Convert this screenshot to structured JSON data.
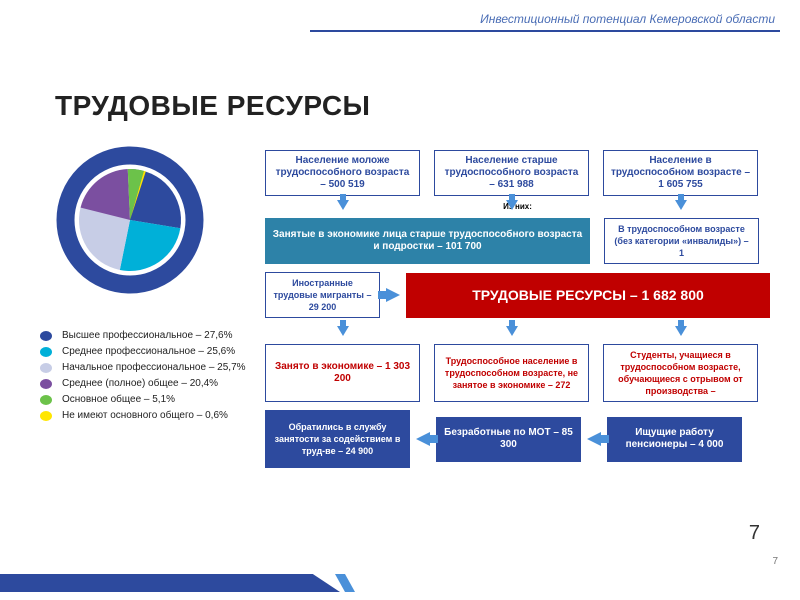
{
  "header": "Инвестиционный потенциал Кемеровской области",
  "title": "ТРУДОВЫЕ РЕСУРСЫ",
  "pie": {
    "ring_color": "#2d4a9e",
    "ring_width": 12,
    "bg": "#ffffff",
    "slices": [
      {
        "label": "Высшее профессиональное",
        "pct": 27.6,
        "color": "#2d4a9e"
      },
      {
        "label": "Среднее профессиональное",
        "pct": 25.6,
        "color": "#00b0d8"
      },
      {
        "label": "Начальное профессиональное",
        "pct": 25.7,
        "color": "#c7cde6"
      },
      {
        "label": "Среднее (полное) общее",
        "pct": 20.4,
        "color": "#7b4fa0"
      },
      {
        "label": "Основное общее",
        "pct": 5.1,
        "color": "#6cc24a"
      },
      {
        "label": "Не имеют основного общего",
        "pct": 0.6,
        "color": "#ffe600"
      }
    ]
  },
  "legend_items": [
    "Высшее профессиональное – 27,6%",
    "Среднее профессиональное – 25,6%",
    "Начальное профессиональное – 25,7%",
    "Среднее (полное) общее – 20,4%",
    "Основное общее – 5,1%",
    "Не имеют основного общего – 0,6%"
  ],
  "izv": "Из них:",
  "boxes": {
    "r1a": "Население моложе трудоспособного возраста – 500 519",
    "r1b": "Население старше трудоспособного возраста – 631 988",
    "r1c": "Население в трудоспособном возрасте – 1 605 755",
    "r2a": "Занятые в экономике лица старше трудоспособного возраста и подростки – 101 700",
    "r2b": "В трудоспособном возрасте (без категории «инвалиды») – 1",
    "r3a": "Иностранные трудовые мигранты – 29 200",
    "r3b": "ТРУДОВЫЕ РЕСУРСЫ – 1 682 800",
    "r4a": "Занято в экономике – 1 303 200",
    "r4b": "Трудоспособное население в трудоспособном возрасте, не занятое в экономике – 272",
    "r4c": "Студенты, учащиеся в трудоспособном возрасте, обучающиеся с отрывом от производства –",
    "r5a": "Обратились в службу занятости за содействием в труд-ве – 24 900",
    "r5b": "Безработные по МОТ – 85 300",
    "r5c": "Ищущие работу пенсионеры – 4 000"
  },
  "page": "7",
  "colors": {
    "navy": "#2d4a9e",
    "teal": "#2d82a8",
    "red": "#c00000",
    "arrow": "#4a90d9"
  }
}
